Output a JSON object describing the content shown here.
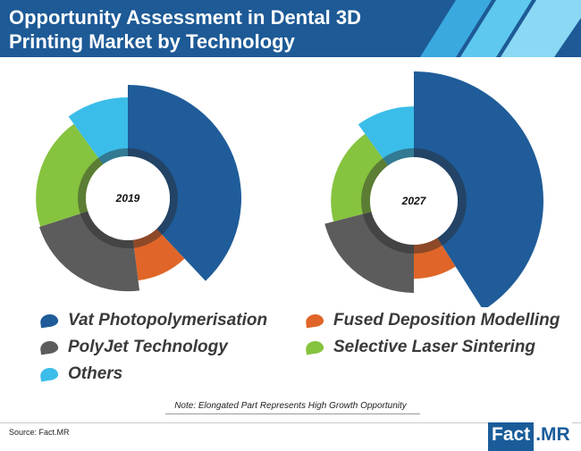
{
  "header": {
    "title": "Opportunity Assessment in Dental 3D Printing Market by Technology"
  },
  "colors": {
    "header_bg": "#1d5a96",
    "stripe_light": "#5fc8ee",
    "stripe_mid": "#3aa9e0"
  },
  "chart_data": [
    {
      "type": "pie",
      "center_label": "2019",
      "categories": [
        "Vat Photopolymerisation",
        "Fused Deposition Modelling",
        "PolyJet Technology",
        "Selective Laser Sintering",
        "Others"
      ],
      "values": [
        38,
        10,
        22,
        20,
        10
      ],
      "radial_extent_relative": [
        1.0,
        0.73,
        0.82,
        0.81,
        0.89
      ],
      "colors": [
        "#1f5c99",
        "#e06528",
        "#5c5c5c",
        "#86c33f",
        "#3bbde9"
      ]
    },
    {
      "type": "pie",
      "center_label": "2027",
      "categories": [
        "Vat Photopolymerisation",
        "Fused Deposition Modelling",
        "PolyJet Technology",
        "Selective Laser Sintering",
        "Others"
      ],
      "values": [
        41,
        9,
        21,
        19,
        10
      ],
      "radial_extent_relative": [
        1.0,
        0.6,
        0.71,
        0.64,
        0.73
      ],
      "colors": [
        "#1f5c99",
        "#e06528",
        "#5c5c5c",
        "#86c33f",
        "#3bbde9"
      ]
    }
  ],
  "legend": {
    "items": [
      {
        "label": "Vat Photopolymerisation",
        "color": "#1f5c99"
      },
      {
        "label": "Fused Deposition Modelling",
        "color": "#e06528"
      },
      {
        "label": "PolyJet Technology",
        "color": "#5c5c5c"
      },
      {
        "label": "Selective Laser Sintering",
        "color": "#86c33f"
      },
      {
        "label": "Others",
        "color": "#3bbde9"
      }
    ]
  },
  "note": "Note: Elongated Part Represents High Growth Opportunity",
  "source": "Source: Fact.MR",
  "logo": {
    "part1": "Fact",
    "part2": ".MR"
  }
}
